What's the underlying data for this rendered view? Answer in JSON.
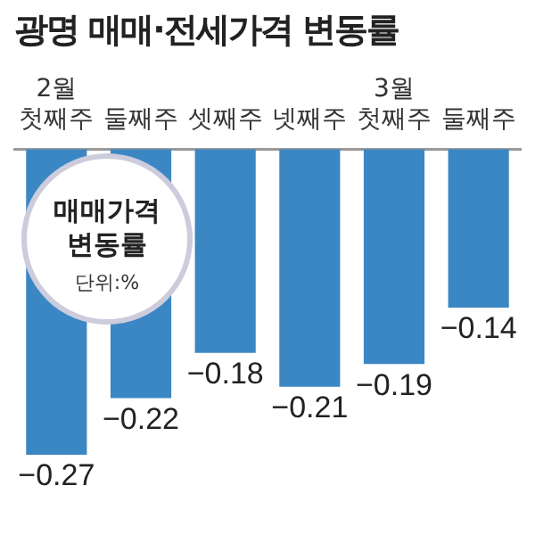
{
  "chart_data": {
    "type": "bar",
    "title": "광명 매매·전세가격 변동률",
    "categories": [
      "2월\n첫째주",
      "둘째주",
      "셋째주",
      "넷째주",
      "3월\n첫째주",
      "둘째주"
    ],
    "series": [
      {
        "color": "#3b87c4",
        "values": [
          -0.27,
          -0.22,
          -0.18,
          -0.21,
          -0.19,
          -0.14
        ],
        "value_labels": [
          "−0.27",
          "−0.22",
          "−0.18",
          "−0.21",
          "−0.19",
          "−0.14"
        ]
      }
    ],
    "annotations": [
      "매매가격\n변동률",
      "단위:%"
    ],
    "grid": false,
    "legend": false
  }
}
